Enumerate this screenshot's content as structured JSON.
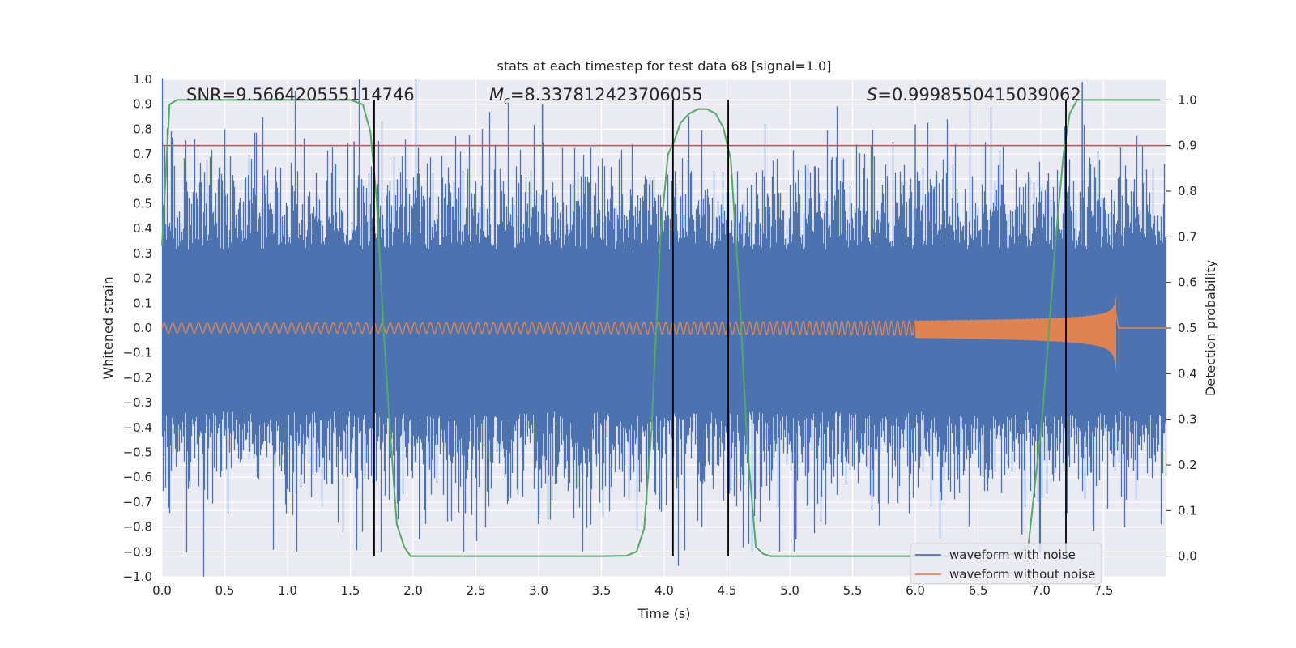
{
  "chart_data": {
    "type": "line",
    "title": "stats at each timestep for test data 68 [signal=1.0]",
    "xlabel": "Time (s)",
    "ylabel": "Whitened strain",
    "ylabel_right": "Detection probability",
    "xlim": [
      0.0,
      8.0
    ],
    "ylim": [
      -1.0,
      1.0
    ],
    "ylim_right": [
      -0.045,
      1.045
    ],
    "x_ticks": [
      0.0,
      0.5,
      1.0,
      1.5,
      2.0,
      2.5,
      3.0,
      3.5,
      4.0,
      4.5,
      5.0,
      5.5,
      6.0,
      6.5,
      7.0,
      7.5
    ],
    "x_tick_labels": [
      "0.0",
      "0.5",
      "1.0",
      "1.5",
      "2.0",
      "2.5",
      "3.0",
      "3.5",
      "4.0",
      "4.5",
      "5.0",
      "5.5",
      "6.0",
      "6.5",
      "7.0",
      "7.5"
    ],
    "y_ticks": [
      1.0,
      0.9,
      0.8,
      0.7,
      0.6,
      0.5,
      0.4,
      0.3,
      0.2,
      0.1,
      0.0,
      -0.1,
      -0.2,
      -0.3,
      -0.4,
      -0.5,
      -0.6,
      -0.7,
      -0.8,
      -0.9,
      -1.0
    ],
    "y_tick_labels": [
      "1.0",
      "0.9",
      "0.8",
      "0.7",
      "0.6",
      "0.5",
      "0.4",
      "0.3",
      "0.2",
      "0.1",
      "0.0",
      "−0.1",
      "−0.2",
      "−0.3",
      "−0.4",
      "−0.5",
      "−0.6",
      "−0.7",
      "−0.8",
      "−0.9",
      "−1.0"
    ],
    "y_right_ticks": [
      1.0,
      0.9,
      0.8,
      0.7,
      0.6,
      0.5,
      0.4,
      0.3,
      0.2,
      0.1,
      0.0
    ],
    "y_right_tick_labels": [
      "1.0",
      "0.9",
      "0.8",
      "0.7",
      "0.6",
      "0.5",
      "0.4",
      "0.3",
      "0.2",
      "0.1",
      "0.0"
    ],
    "annotations": {
      "snr": "SNR=9.566420555114746",
      "mc_symbol": "M",
      "mc_sub": "c",
      "mc_value": "=8.337812423706055",
      "s_symbol": "S",
      "s_value": "=0.9998550415039062"
    },
    "threshold": 0.9,
    "vertical_lines_x": [
      1.69,
      4.07,
      4.51,
      7.2
    ],
    "noisy_waveform": {
      "name": "waveform with noise",
      "typical_amplitude": 0.42,
      "spike_max": 1.0,
      "spike_min": -0.9,
      "color": "#4c72b0"
    },
    "clean_waveform": {
      "name": "waveform without noise",
      "start_amplitude": 0.02,
      "peak_time": 7.6,
      "peak_amplitude": 0.22,
      "color": "#dd8452"
    },
    "detection_probability": {
      "name": "detection probability",
      "color": "#55a868",
      "x": [
        0.0,
        0.06,
        0.12,
        0.5,
        1.0,
        1.5,
        1.6,
        1.66,
        1.71,
        1.76,
        1.81,
        1.87,
        1.93,
        1.98,
        2.05,
        2.5,
        3.0,
        3.5,
        3.7,
        3.78,
        3.84,
        3.9,
        3.97,
        4.03,
        4.08,
        4.13,
        4.2,
        4.27,
        4.34,
        4.41,
        4.47,
        4.53,
        4.6,
        4.66,
        4.73,
        4.79,
        4.85,
        5.0,
        6.5,
        6.8,
        6.9,
        6.95,
        7.01,
        7.06,
        7.12,
        7.18,
        7.23,
        7.29,
        7.34,
        7.4,
        7.95
      ],
      "y": [
        0.68,
        0.99,
        1.0,
        1.0,
        1.0,
        1.0,
        0.99,
        0.93,
        0.78,
        0.52,
        0.3,
        0.07,
        0.02,
        0.0,
        0.0,
        0.0,
        0.0,
        0.0,
        0.001,
        0.01,
        0.06,
        0.28,
        0.7,
        0.88,
        0.91,
        0.95,
        0.97,
        0.98,
        0.98,
        0.97,
        0.94,
        0.87,
        0.57,
        0.25,
        0.02,
        0.005,
        0.0,
        0.0,
        0.0,
        0.005,
        0.02,
        0.15,
        0.3,
        0.48,
        0.7,
        0.88,
        0.97,
        1.0,
        1.0,
        1.0,
        1.0
      ]
    },
    "legend": [
      "waveform with noise",
      "waveform without noise"
    ],
    "legend_position": "lower-right"
  },
  "colors": {
    "background": "#eaeaf2",
    "grid": "#ffffff",
    "noisy": "#4c72b0",
    "clean": "#dd8452",
    "probability": "#55a868",
    "threshold": "#c44e52",
    "vlines": "#000000"
  }
}
